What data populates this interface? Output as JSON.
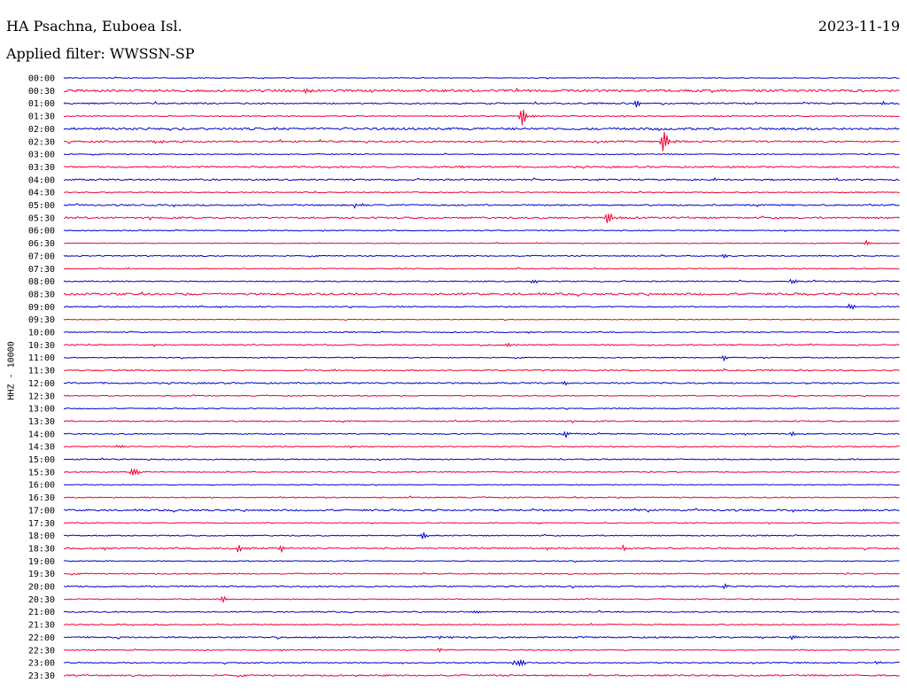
{
  "header": {
    "station": "HA Psachna, Euboea Isl.",
    "filter": "Applied filter: WWSSN-SP",
    "date": "2023-11-19"
  },
  "chart_data": {
    "type": "line",
    "title": "HA Psachna, Euboea Isl.",
    "subtitle": "Applied filter: WWSSN-SP",
    "date": "2023-11-19",
    "ylabel": "HHZ - 10000",
    "xlabel": "",
    "grid": false,
    "y_tick_labels": [
      "00:00",
      "00:30",
      "01:00",
      "01:30",
      "02:00",
      "02:30",
      "03:00",
      "03:30",
      "04:00",
      "04:30",
      "05:00",
      "05:30",
      "06:00",
      "06:30",
      "07:00",
      "07:30",
      "08:00",
      "08:30",
      "09:00",
      "09:30",
      "10:00",
      "10:30",
      "11:00",
      "11:30",
      "12:00",
      "12:30",
      "13:00",
      "13:30",
      "14:00",
      "14:30",
      "15:00",
      "15:30",
      "16:00",
      "16:30",
      "17:00",
      "17:30",
      "18:00",
      "18:30",
      "19:00",
      "19:30",
      "20:00",
      "20:30",
      "21:00",
      "21:30",
      "22:00",
      "22:30",
      "23:00",
      "23:30"
    ],
    "colors": {
      "even_rows": "#0000cc",
      "odd_rows": "#ee0033"
    },
    "x_range_fraction": [
      0,
      1
    ],
    "noise_level": [
      0.4,
      1.3,
      0.8,
      0.5,
      1.2,
      0.9,
      0.5,
      0.9,
      0.8,
      0.5,
      0.8,
      0.9,
      0.5,
      0.4,
      0.6,
      0.5,
      0.6,
      1.1,
      0.6,
      0.4,
      0.5,
      0.7,
      0.5,
      0.7,
      0.8,
      0.5,
      0.5,
      0.7,
      0.6,
      0.6,
      0.6,
      0.5,
      0.4,
      0.6,
      0.9,
      0.5,
      0.6,
      0.8,
      0.5,
      0.6,
      0.7,
      0.5,
      0.6,
      0.6,
      0.8,
      0.5,
      0.6,
      0.8
    ],
    "events": [
      {
        "row": 1,
        "t": 0.29,
        "amp": 4
      },
      {
        "row": 2,
        "t": 0.685,
        "amp": 6
      },
      {
        "row": 2,
        "t": 0.98,
        "amp": 3
      },
      {
        "row": 3,
        "t": 0.548,
        "amp": 12
      },
      {
        "row": 5,
        "t": 0.11,
        "amp": 4
      },
      {
        "row": 5,
        "t": 0.716,
        "amp": 16
      },
      {
        "row": 7,
        "t": 0.47,
        "amp": 3
      },
      {
        "row": 10,
        "t": 0.35,
        "amp": 8
      },
      {
        "row": 11,
        "t": 0.65,
        "amp": 7
      },
      {
        "row": 13,
        "t": 0.96,
        "amp": 3
      },
      {
        "row": 14,
        "t": 0.79,
        "amp": 3
      },
      {
        "row": 16,
        "t": 0.56,
        "amp": 4
      },
      {
        "row": 16,
        "t": 0.87,
        "amp": 4
      },
      {
        "row": 18,
        "t": 0.94,
        "amp": 4
      },
      {
        "row": 21,
        "t": 0.53,
        "amp": 3
      },
      {
        "row": 22,
        "t": 0.79,
        "amp": 3
      },
      {
        "row": 24,
        "t": 0.6,
        "amp": 2
      },
      {
        "row": 28,
        "t": 0.6,
        "amp": 5
      },
      {
        "row": 28,
        "t": 0.87,
        "amp": 3
      },
      {
        "row": 29,
        "t": 0.06,
        "amp": 5
      },
      {
        "row": 31,
        "t": 0.08,
        "amp": 8
      },
      {
        "row": 34,
        "t": 0.69,
        "amp": 2
      },
      {
        "row": 34,
        "t": 0.96,
        "amp": 2
      },
      {
        "row": 36,
        "t": 0.43,
        "amp": 5
      },
      {
        "row": 37,
        "t": 0.21,
        "amp": 7
      },
      {
        "row": 37,
        "t": 0.26,
        "amp": 5
      },
      {
        "row": 37,
        "t": 0.67,
        "amp": 4
      },
      {
        "row": 40,
        "t": 0.79,
        "amp": 3
      },
      {
        "row": 41,
        "t": 0.19,
        "amp": 4
      },
      {
        "row": 42,
        "t": 0.49,
        "amp": 2
      },
      {
        "row": 44,
        "t": 0.45,
        "amp": 4
      },
      {
        "row": 44,
        "t": 0.87,
        "amp": 3
      },
      {
        "row": 45,
        "t": 0.45,
        "amp": 3
      },
      {
        "row": 46,
        "t": 0.54,
        "amp": 11
      },
      {
        "row": 46,
        "t": 0.88,
        "amp": 3
      },
      {
        "row": 46,
        "t": 0.97,
        "amp": 3
      }
    ]
  }
}
